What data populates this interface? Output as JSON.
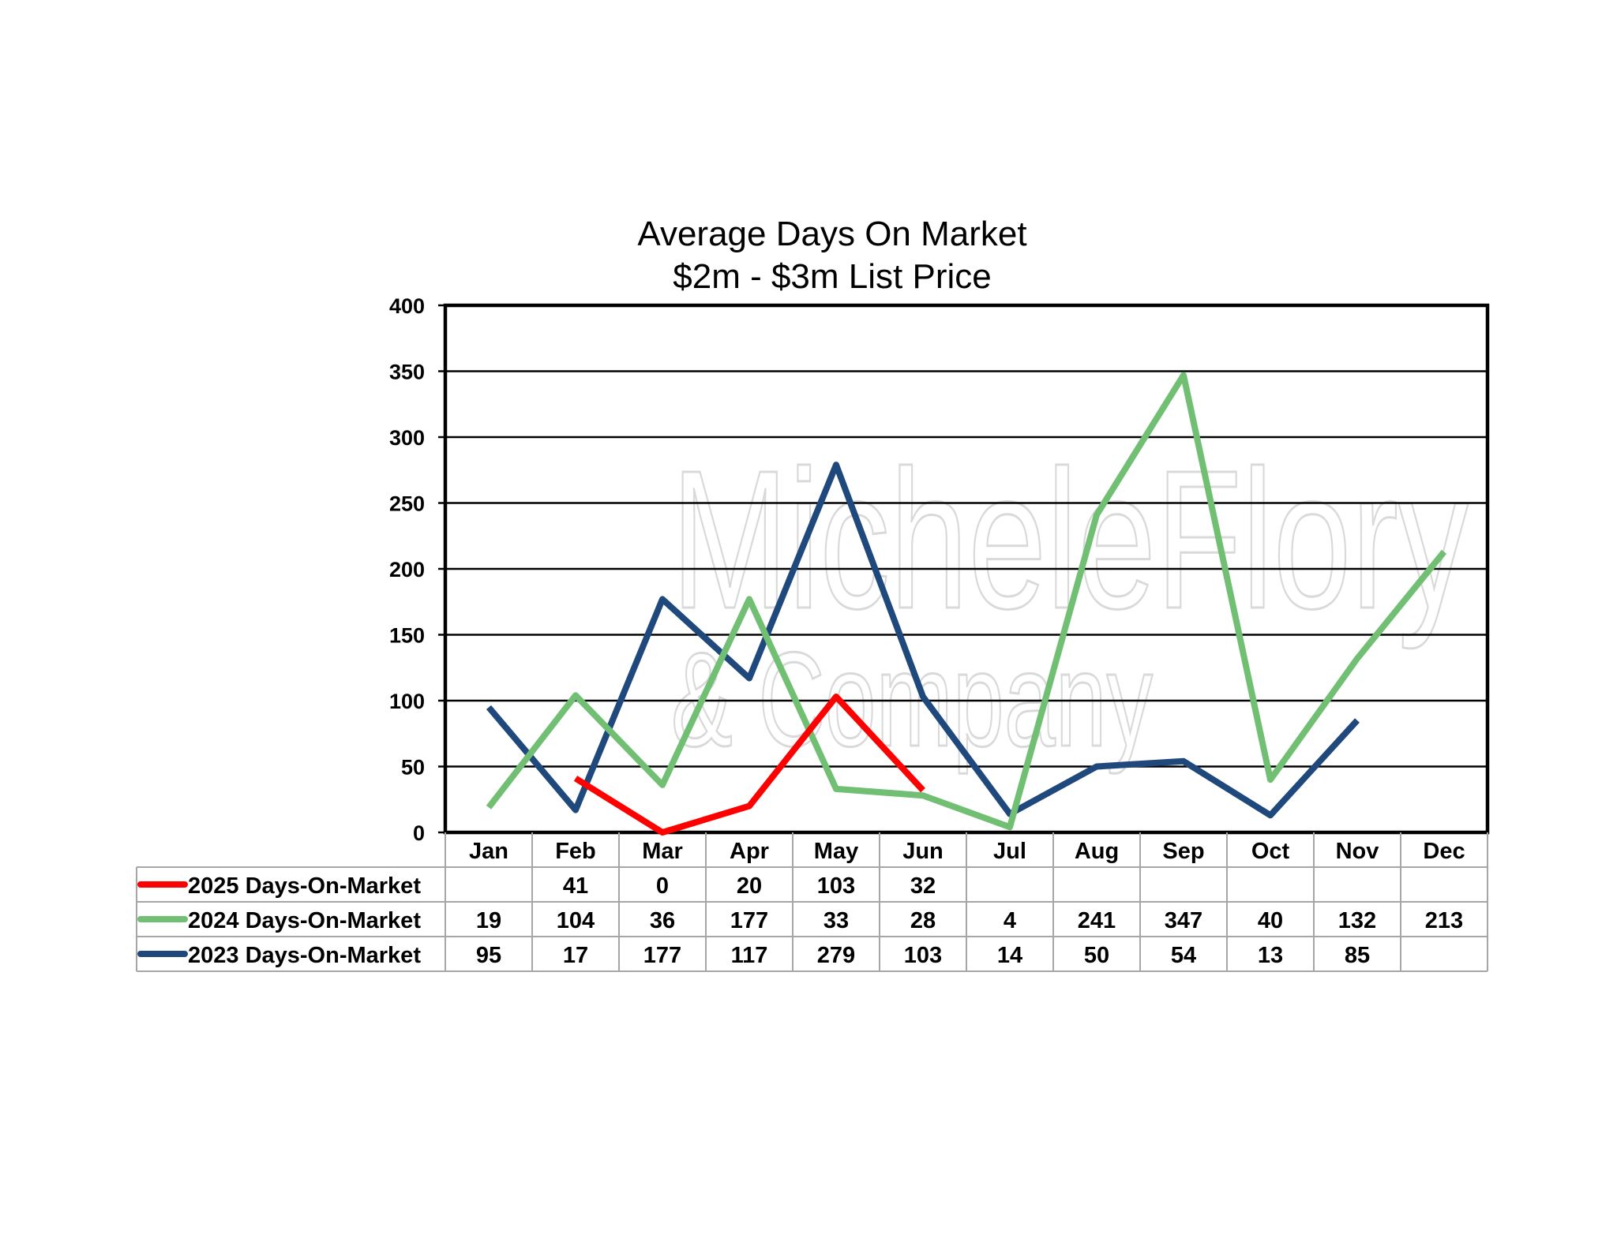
{
  "chart_data": {
    "type": "line",
    "title": "Average Days On Market",
    "subtitle": "$2m - $3m List Price",
    "categories": [
      "Jan",
      "Feb",
      "Mar",
      "Apr",
      "May",
      "Jun",
      "Jul",
      "Aug",
      "Sep",
      "Oct",
      "Nov",
      "Dec"
    ],
    "ylim": [
      0,
      400
    ],
    "yticks": [
      0,
      50,
      100,
      150,
      200,
      250,
      300,
      350,
      400
    ],
    "grid": true,
    "legend": "data table below chart",
    "series": [
      {
        "name": "2025 Days-On-Market",
        "color": "#ff0000",
        "values": [
          null,
          41,
          0,
          20,
          103,
          32,
          null,
          null,
          null,
          null,
          null,
          null
        ]
      },
      {
        "name": "2024 Days-On-Market",
        "color": "#70bf73",
        "values": [
          19,
          104,
          36,
          177,
          33,
          28,
          4,
          241,
          347,
          40,
          132,
          213
        ]
      },
      {
        "name": "2023 Days-On-Market",
        "color": "#1f497d",
        "values": [
          95,
          17,
          177,
          117,
          279,
          103,
          14,
          50,
          54,
          13,
          85,
          null
        ]
      }
    ],
    "watermark": [
      "MicheleFlory",
      "& Company"
    ]
  }
}
